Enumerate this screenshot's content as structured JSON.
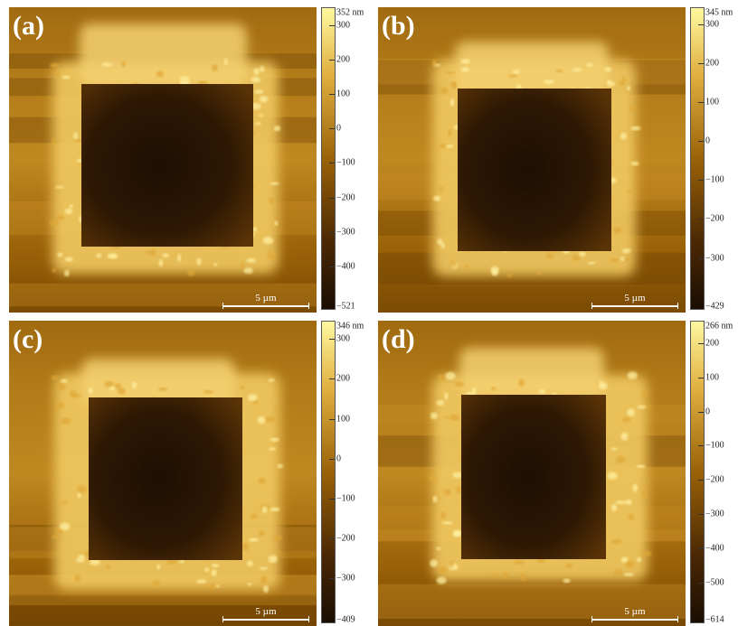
{
  "colors": {
    "scale_bottom": "#1a0d02",
    "scale_low": "#4a2804",
    "scale_mid": "#9a6208",
    "scale_high": "#e0b040",
    "scale_top": "#fff8a0",
    "background": "#ffffff"
  },
  "scale_bar_label": "5 µm",
  "panels": [
    {
      "label": "(a)",
      "colorbar": {
        "max_label": "352 nm",
        "ticks": [
          {
            "label": "300",
            "value": 300
          },
          {
            "label": "200",
            "value": 200
          },
          {
            "label": "100",
            "value": 100
          },
          {
            "label": "0",
            "value": 0
          },
          {
            "label": "−100",
            "value": -100
          },
          {
            "label": "−200",
            "value": -200
          },
          {
            "label": "−300",
            "value": -300
          },
          {
            "label": "−400",
            "value": -400
          }
        ],
        "min_label": "−521",
        "max": 352,
        "min": -521
      }
    },
    {
      "label": "(b)",
      "colorbar": {
        "max_label": "345 nm",
        "ticks": [
          {
            "label": "300",
            "value": 300
          },
          {
            "label": "200",
            "value": 200
          },
          {
            "label": "100",
            "value": 100
          },
          {
            "label": "0",
            "value": 0
          },
          {
            "label": "−100",
            "value": -100
          },
          {
            "label": "−200",
            "value": -200
          },
          {
            "label": "−300",
            "value": -300
          }
        ],
        "min_label": "−429",
        "max": 345,
        "min": -429
      }
    },
    {
      "label": "(c)",
      "colorbar": {
        "max_label": "346 nm",
        "ticks": [
          {
            "label": "300",
            "value": 300
          },
          {
            "label": "200",
            "value": 200
          },
          {
            "label": "100",
            "value": 100
          },
          {
            "label": "0",
            "value": 0
          },
          {
            "label": "−100",
            "value": -100
          },
          {
            "label": "−200",
            "value": -200
          },
          {
            "label": "−300",
            "value": -300
          }
        ],
        "min_label": "−409",
        "max": 346,
        "min": -409
      }
    },
    {
      "label": "(d)",
      "colorbar": {
        "max_label": "266 nm",
        "ticks": [
          {
            "label": "200",
            "value": 200
          },
          {
            "label": "100",
            "value": 100
          },
          {
            "label": "0",
            "value": 0
          },
          {
            "label": "−100",
            "value": -100
          },
          {
            "label": "−200",
            "value": -200
          },
          {
            "label": "−300",
            "value": -300
          },
          {
            "label": "−400",
            "value": -400
          },
          {
            "label": "−500",
            "value": -500
          }
        ],
        "min_label": "−614",
        "max": 266,
        "min": -614
      }
    }
  ]
}
